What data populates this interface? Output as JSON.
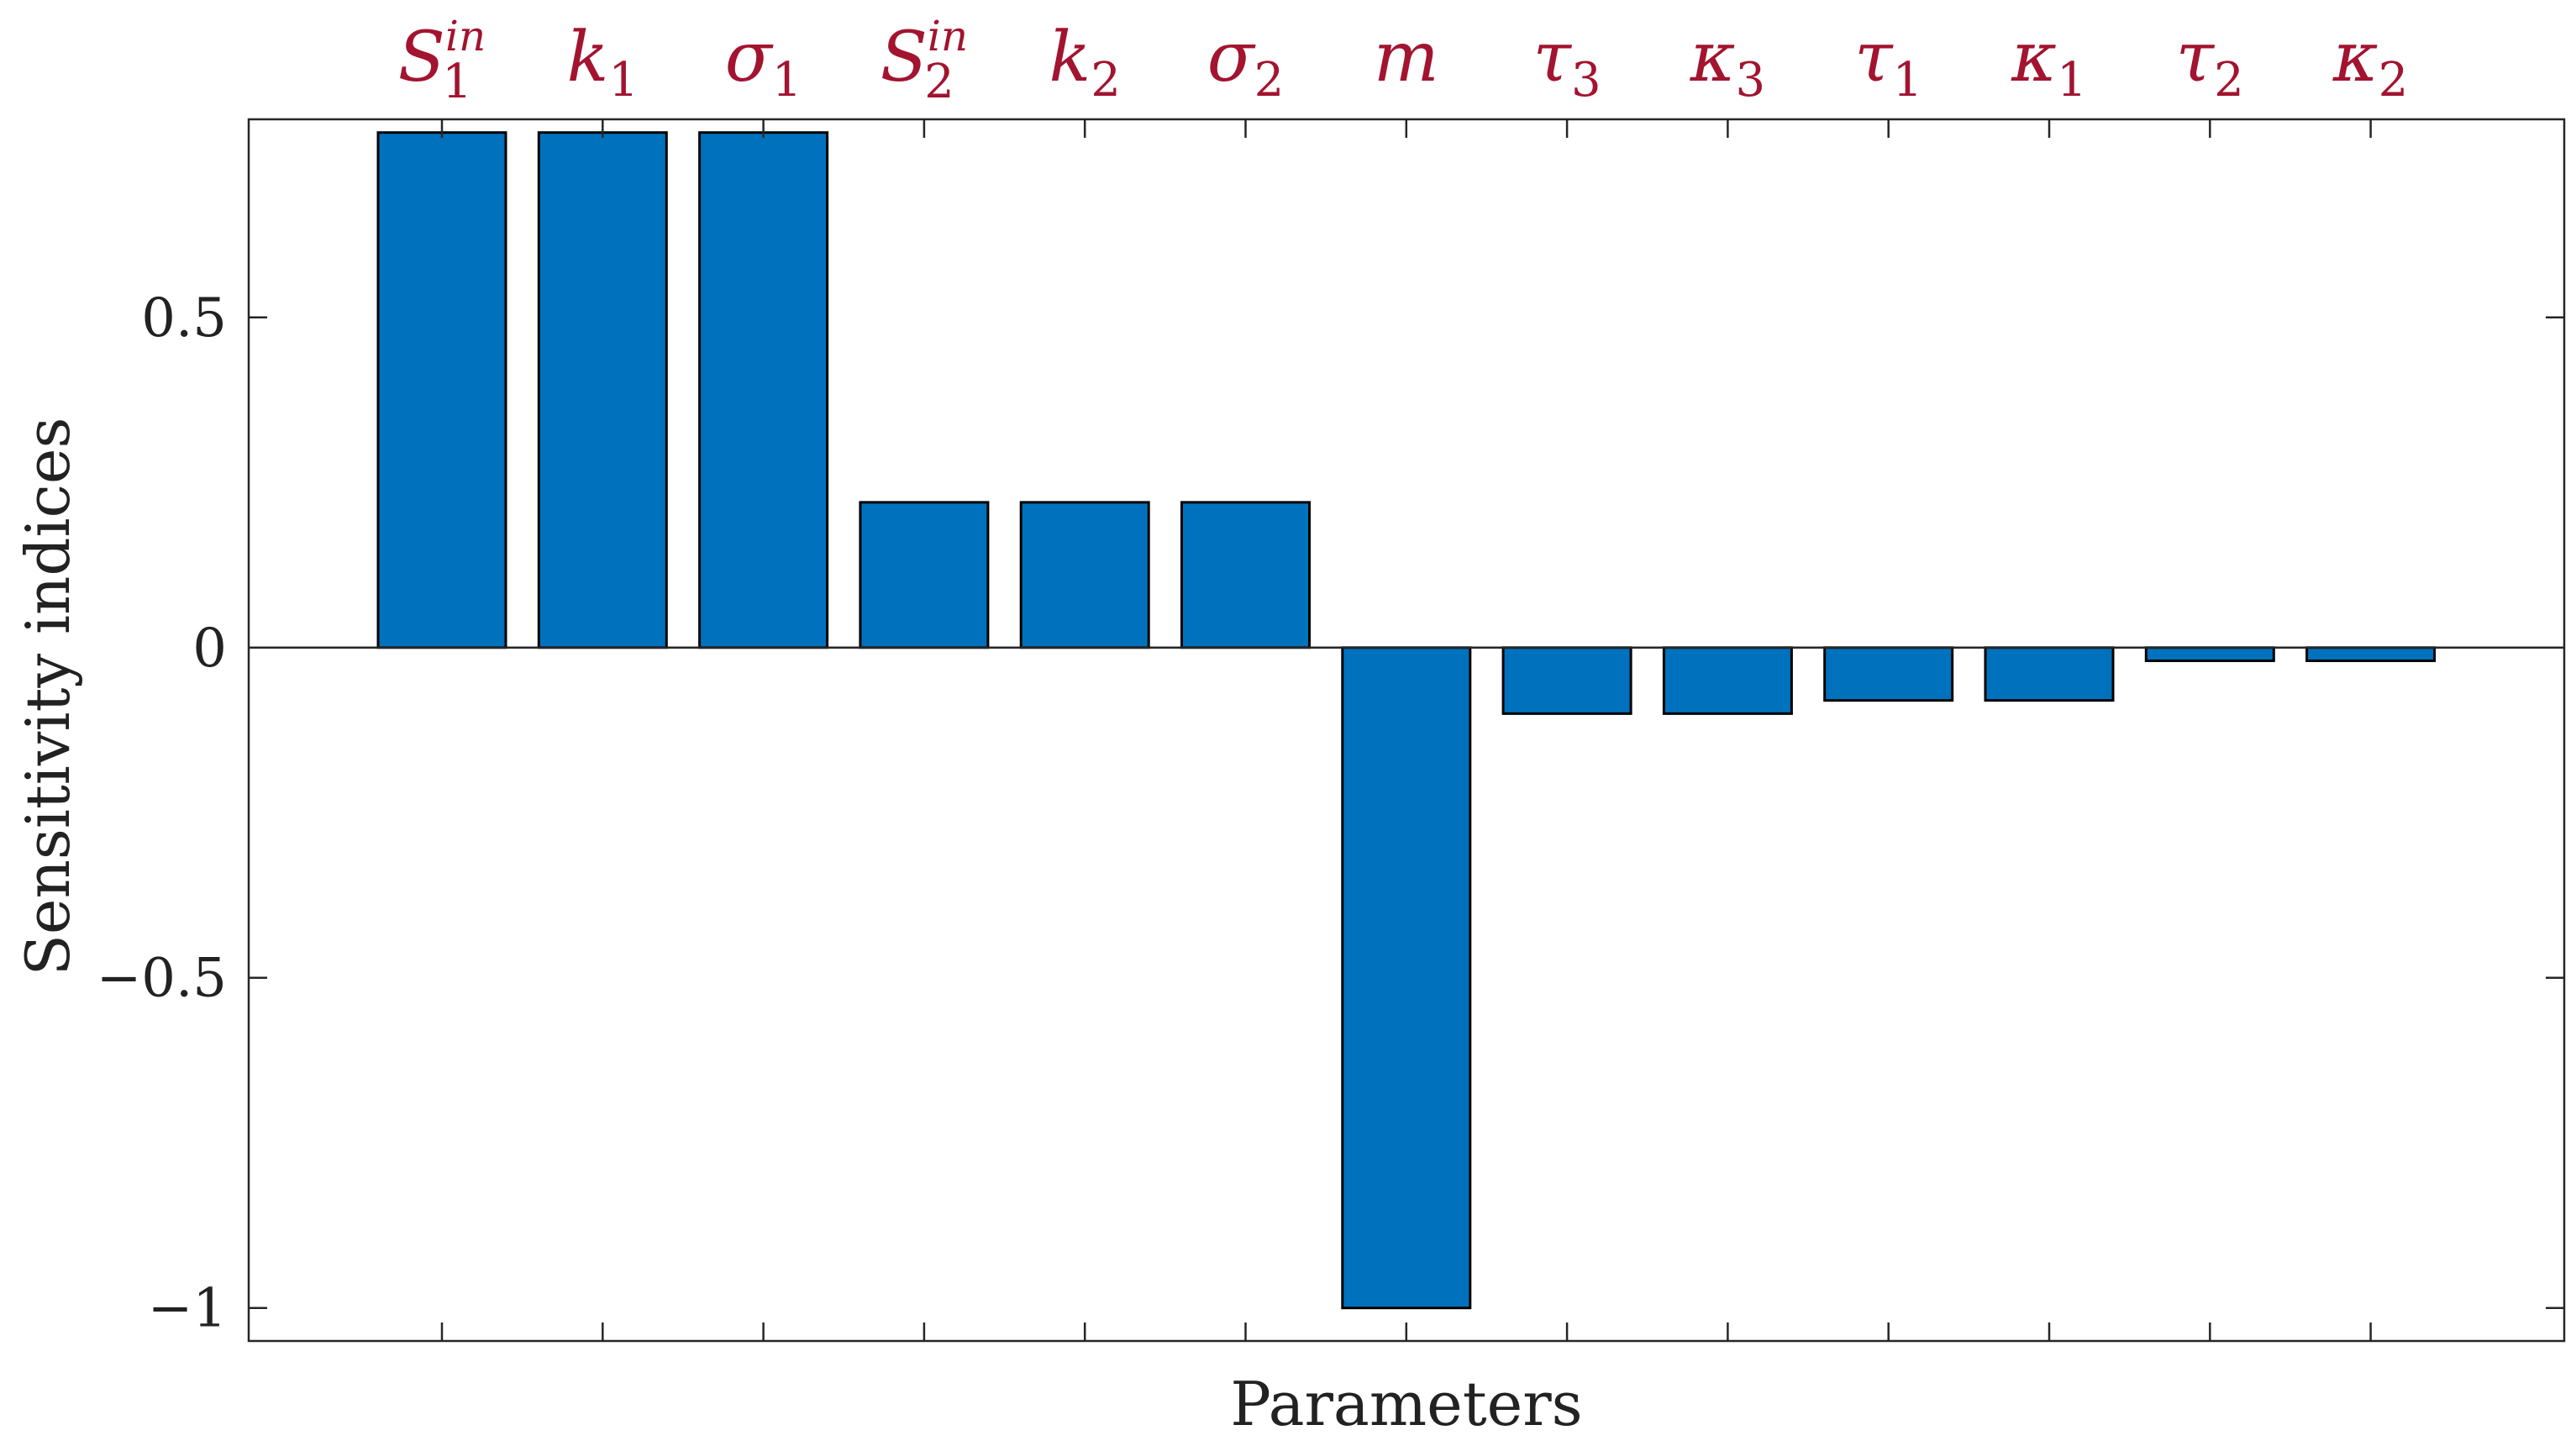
{
  "chart_data": {
    "type": "bar",
    "xlabel": "Parameters",
    "ylabel": "Sensitivity indices",
    "ylim": [
      -1.05,
      0.8
    ],
    "yticks": [
      {
        "value": -1,
        "label": "−1"
      },
      {
        "value": -0.5,
        "label": "−0.5"
      },
      {
        "value": 0,
        "label": "0"
      },
      {
        "value": 0.5,
        "label": "0.5"
      }
    ],
    "categories": [
      {
        "base": "S",
        "sub": "1",
        "sup": "in"
      },
      {
        "base": "k",
        "sub": "1",
        "sup": ""
      },
      {
        "base": "σ",
        "sub": "1",
        "sup": ""
      },
      {
        "base": "S",
        "sub": "2",
        "sup": "in"
      },
      {
        "base": "k",
        "sub": "2",
        "sup": ""
      },
      {
        "base": "σ",
        "sub": "2",
        "sup": ""
      },
      {
        "base": "m",
        "sub": "",
        "sup": ""
      },
      {
        "base": "τ",
        "sub": "3",
        "sup": ""
      },
      {
        "base": "κ",
        "sub": "3",
        "sup": ""
      },
      {
        "base": "τ",
        "sub": "1",
        "sup": ""
      },
      {
        "base": "κ",
        "sub": "1",
        "sup": ""
      },
      {
        "base": "τ",
        "sub": "2",
        "sup": ""
      },
      {
        "base": "κ",
        "sub": "2",
        "sup": ""
      }
    ],
    "values": [
      0.78,
      0.78,
      0.78,
      0.22,
      0.22,
      0.22,
      -1.0,
      -0.1,
      -0.1,
      -0.08,
      -0.08,
      -0.02,
      -0.02
    ],
    "grid": false,
    "colors": {
      "bar": "#0072BD",
      "bar_edge": "#000000",
      "label": "#A2142F",
      "axis": "#262626"
    }
  }
}
